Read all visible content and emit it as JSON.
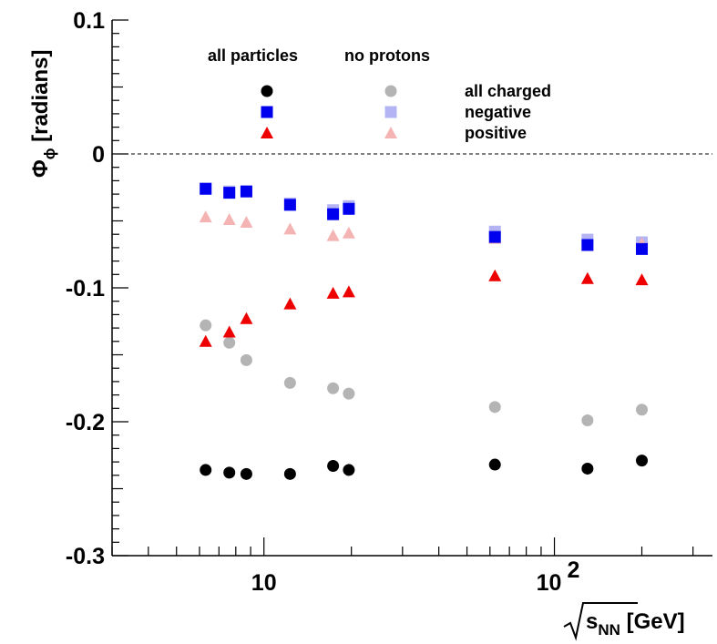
{
  "chart_data": {
    "type": "scatter",
    "xscale": "log",
    "xlim": [
      3,
      350
    ],
    "ylim": [
      -0.3,
      0.1
    ],
    "xlabel_base": "s",
    "xlabel_sub": "NN",
    "xlabel_unit": "[GeV]",
    "ylabel_symbol": "Φ",
    "ylabel_sub": "ϕ",
    "ylabel_unit": "[radians]",
    "y_ticks": [
      0.1,
      0,
      -0.1,
      -0.2,
      -0.3
    ],
    "y_tick_labels": [
      "0.1",
      "0",
      "-0.1",
      "-0.2",
      "-0.3"
    ],
    "x_ticks": [
      10,
      100
    ],
    "x_tick_labels": [
      "10",
      "10",
      "2"
    ],
    "reference_line": 0,
    "legend": {
      "col_all": "all particles",
      "col_noprot": "no protons",
      "rows": [
        "all charged",
        "negative",
        "positive"
      ]
    },
    "x": [
      6.3,
      7.6,
      8.7,
      12.3,
      17.3,
      19.6,
      62.4,
      130,
      200
    ],
    "series": [
      {
        "group": "all particles",
        "kind": "all charged",
        "marker": "circle",
        "color": "#000000",
        "values": [
          -0.236,
          -0.238,
          -0.239,
          -0.239,
          -0.233,
          -0.236,
          -0.232,
          -0.235,
          -0.229
        ]
      },
      {
        "group": "all particles",
        "kind": "negative",
        "marker": "square",
        "color": "#0000ee",
        "values": [
          -0.026,
          -0.029,
          -0.028,
          -0.038,
          -0.045,
          -0.041,
          -0.062,
          -0.068,
          -0.071
        ]
      },
      {
        "group": "all particles",
        "kind": "positive",
        "marker": "triangle",
        "color": "#ee0000",
        "values": [
          -0.14,
          -0.133,
          -0.123,
          -0.112,
          -0.104,
          -0.103,
          -0.091,
          -0.093,
          -0.094
        ]
      },
      {
        "group": "no protons",
        "kind": "all charged",
        "marker": "circle",
        "color": "#b4b4b4",
        "values": [
          -0.128,
          -0.141,
          -0.154,
          -0.171,
          -0.175,
          -0.179,
          -0.189,
          -0.199,
          -0.191
        ]
      },
      {
        "group": "no protons",
        "kind": "negative",
        "marker": "square",
        "color": "#b4b4f5",
        "values": [
          -0.026,
          -0.028,
          -0.028,
          -0.037,
          -0.042,
          -0.039,
          -0.058,
          -0.064,
          -0.066
        ]
      },
      {
        "group": "no protons",
        "kind": "positive",
        "marker": "triangle",
        "color": "#f5b4b4",
        "values": [
          -0.047,
          -0.049,
          -0.051,
          -0.056,
          -0.061,
          -0.059,
          -0.063,
          -0.068,
          -0.067
        ]
      }
    ]
  }
}
